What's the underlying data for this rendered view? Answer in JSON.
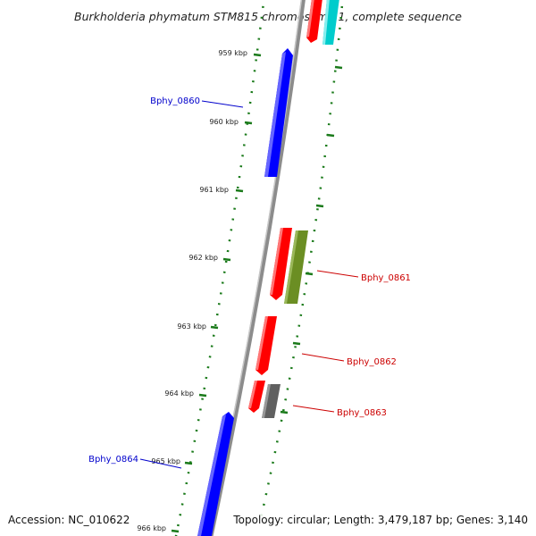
{
  "title": "Burkholderia phymatum STM815 chromosome 1, complete sequence",
  "footer": {
    "accession": "Accession: NC_010622",
    "summary": "Topology: circular; Length: 3,479,187 bp; Genes: 3,140"
  },
  "ticks": [
    "959 kbp",
    "960 kbp",
    "961 kbp",
    "962 kbp",
    "963 kbp",
    "964 kbp",
    "965 kbp",
    "966 kbp"
  ],
  "gene_labels": {
    "g0860": "Bphy_0860",
    "g0861": "Bphy_0861",
    "g0862": "Bphy_0862",
    "g0863": "Bphy_0863",
    "g0864": "Bphy_0864"
  },
  "colors": {
    "forward_strand": "#0000ff",
    "reverse_strand": "#ff0000",
    "olive_feature": "#6b8e23",
    "gray_feature": "#606060",
    "cyan_feature": "#00cccc",
    "backbone": "#8c8c8c",
    "tick": "#1a7a1a",
    "forward_label": "#0000cc",
    "reverse_label": "#cc0000"
  }
}
